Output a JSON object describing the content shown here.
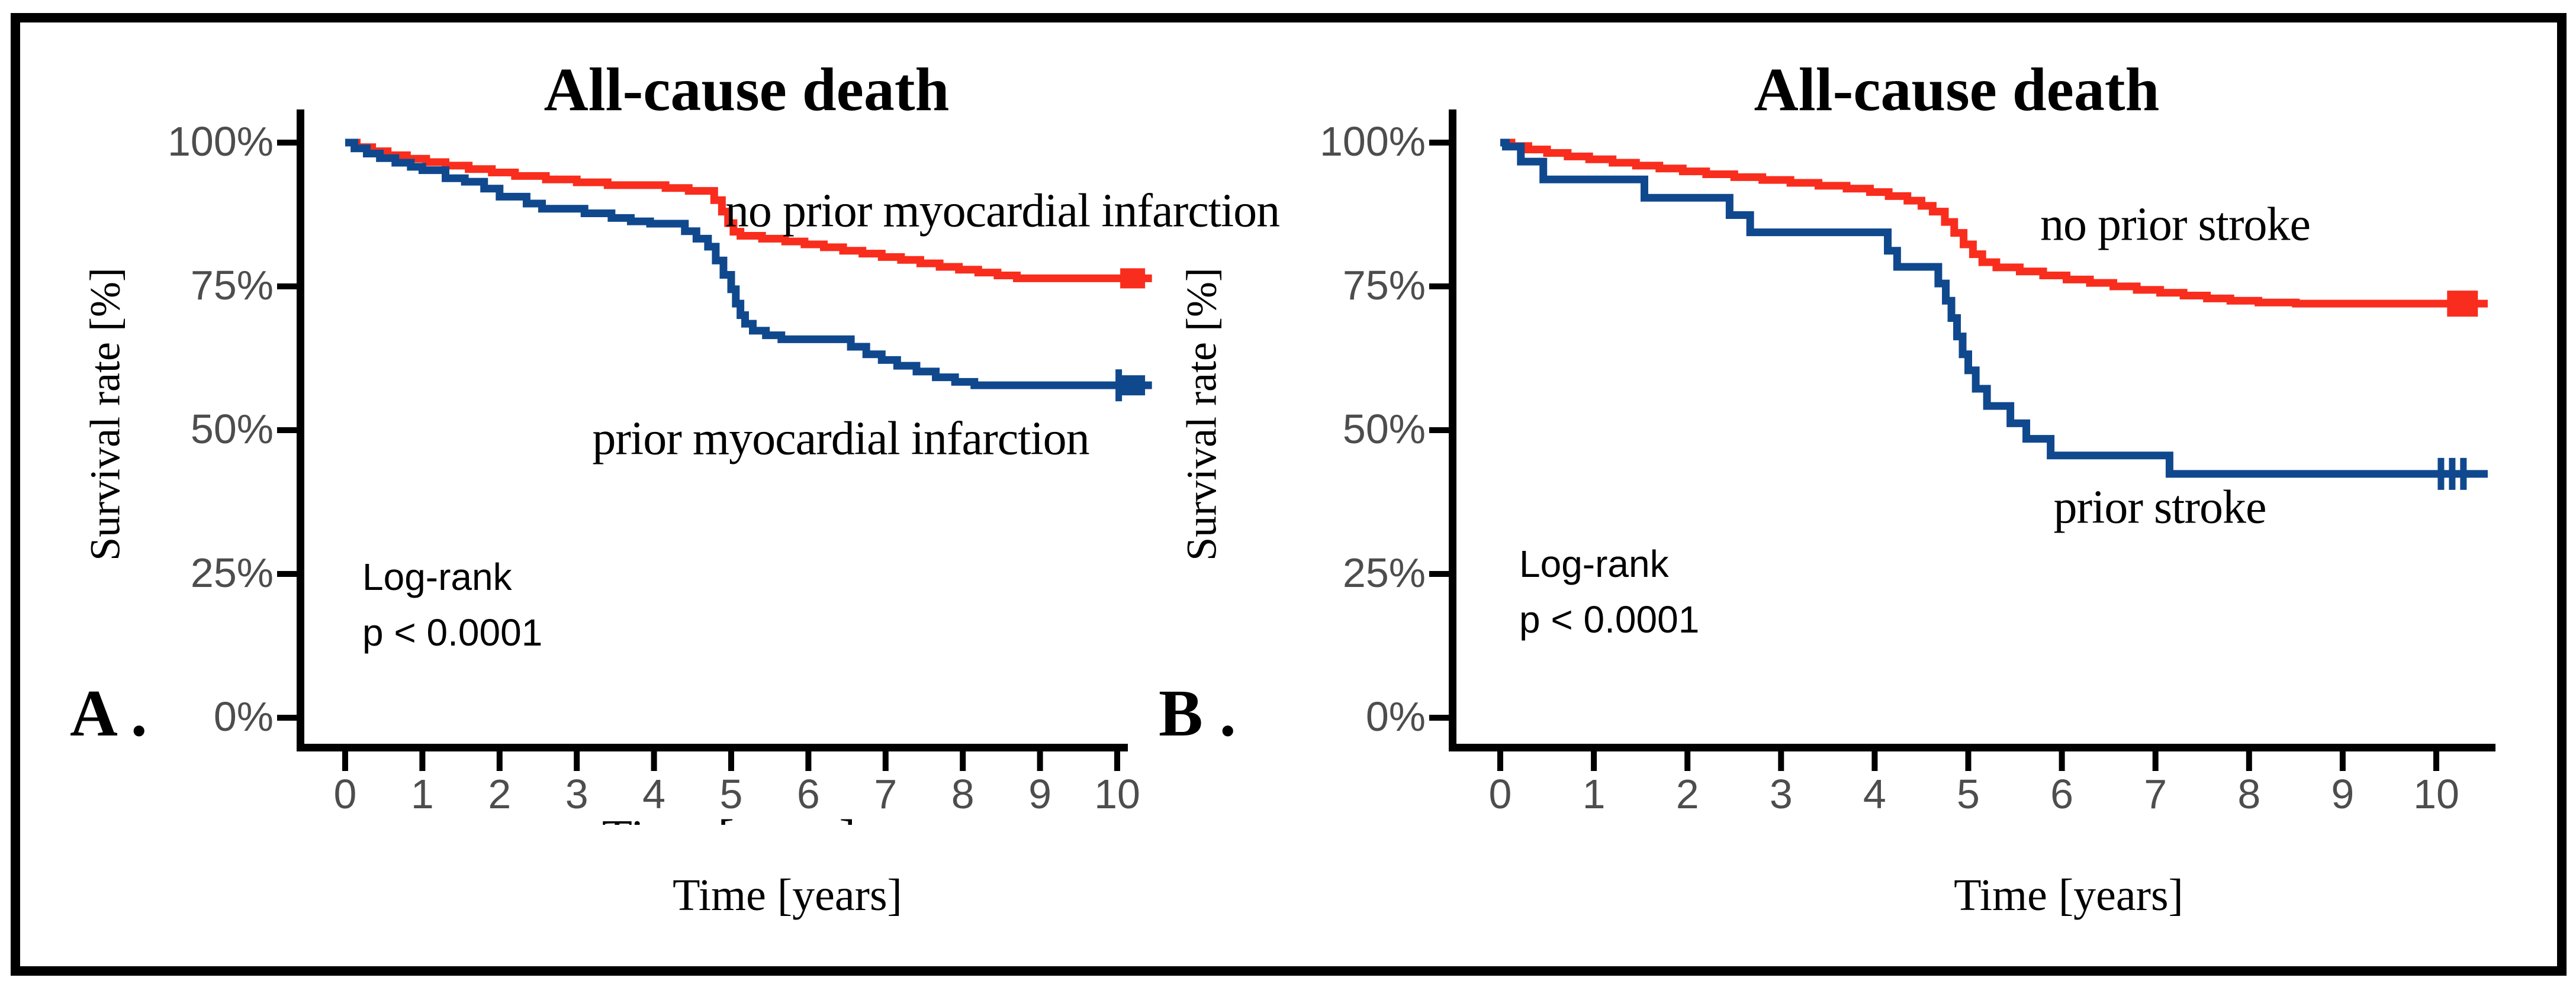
{
  "figure": {
    "panels": [
      {
        "letter": "A .",
        "stats": {
          "line1": "Log-rank",
          "line2": "p < 0.0001"
        }
      },
      {
        "letter": "B .",
        "stats": {
          "line1": "Log-rank",
          "line2": "p < 0.0001"
        }
      }
    ]
  },
  "chart_data": [
    {
      "type": "line",
      "subtype": "kaplan-meier-step",
      "title": "All-cause death",
      "xlabel": "Time [years]",
      "ylabel": "Survival rate [%]",
      "annotation": "Log-rank p < 0.0001",
      "xlim": [
        0,
        10.6
      ],
      "ylim": [
        0,
        100
      ],
      "x_ticks": [
        0,
        1,
        2,
        3,
        4,
        5,
        6,
        7,
        8,
        9,
        10
      ],
      "y_ticks": [
        {
          "label": "100%",
          "value": 100
        },
        {
          "label": "75%",
          "value": 75
        },
        {
          "label": "50%",
          "value": 50
        },
        {
          "label": "25%",
          "value": 25
        },
        {
          "label": "0%",
          "value": 0
        }
      ],
      "grid": false,
      "legend_position": "inline-labels",
      "series": [
        {
          "name": "no prior myocardial infarction",
          "color": "#f92d1d",
          "points": [
            [
              0,
              100
            ],
            [
              0.15,
              99.2
            ],
            [
              0.35,
              98.5
            ],
            [
              0.55,
              97.8
            ],
            [
              0.8,
              97.2
            ],
            [
              1.05,
              96.6
            ],
            [
              1.3,
              96.0
            ],
            [
              1.6,
              95.4
            ],
            [
              1.9,
              94.8
            ],
            [
              2.2,
              94.2
            ],
            [
              2.6,
              93.6
            ],
            [
              3.0,
              93.1
            ],
            [
              3.4,
              92.6
            ],
            [
              4.15,
              92.1
            ],
            [
              4.45,
              91.6
            ],
            [
              4.78,
              90.0
            ],
            [
              4.88,
              88.0
            ],
            [
              4.96,
              86.0
            ],
            [
              5.03,
              84.5
            ],
            [
              5.12,
              83.8
            ],
            [
              5.4,
              83.3
            ],
            [
              5.7,
              82.8
            ],
            [
              5.95,
              82.3
            ],
            [
              6.2,
              81.8
            ],
            [
              6.45,
              81.2
            ],
            [
              6.7,
              80.7
            ],
            [
              6.95,
              80.1
            ],
            [
              7.2,
              79.6
            ],
            [
              7.45,
              79.0
            ],
            [
              7.7,
              78.4
            ],
            [
              7.95,
              77.9
            ],
            [
              8.2,
              77.4
            ],
            [
              8.45,
              76.9
            ],
            [
              8.7,
              76.4
            ],
            [
              10.45,
              76.4
            ]
          ],
          "censor_times": [],
          "end_square_time": 10.2
        },
        {
          "name": "prior myocardial infarction",
          "color": "#10488e",
          "points": [
            [
              0,
              100
            ],
            [
              0.12,
              99.0
            ],
            [
              0.28,
              98.1
            ],
            [
              0.45,
              97.3
            ],
            [
              0.65,
              96.5
            ],
            [
              0.85,
              95.8
            ],
            [
              1.0,
              95.2
            ],
            [
              1.3,
              93.8
            ],
            [
              1.55,
              93.2
            ],
            [
              1.8,
              92.0
            ],
            [
              2.0,
              90.6
            ],
            [
              2.35,
              89.4
            ],
            [
              2.55,
              88.5
            ],
            [
              3.1,
              87.7
            ],
            [
              3.45,
              86.9
            ],
            [
              3.7,
              86.3
            ],
            [
              3.95,
              85.9
            ],
            [
              4.4,
              84.6
            ],
            [
              4.55,
              83.3
            ],
            [
              4.7,
              81.9
            ],
            [
              4.8,
              79.5
            ],
            [
              4.9,
              77.0
            ],
            [
              5.0,
              74.5
            ],
            [
              5.06,
              72.0
            ],
            [
              5.12,
              70.0
            ],
            [
              5.18,
              68.5
            ],
            [
              5.28,
              67.3
            ],
            [
              5.45,
              66.5
            ],
            [
              5.65,
              65.8
            ],
            [
              6.55,
              64.5
            ],
            [
              6.75,
              63.2
            ],
            [
              6.95,
              62.2
            ],
            [
              7.15,
              61.2
            ],
            [
              7.4,
              60.2
            ],
            [
              7.65,
              59.2
            ],
            [
              7.9,
              58.4
            ],
            [
              8.15,
              57.8
            ],
            [
              10.45,
              57.8
            ]
          ],
          "censor_times": [
            10.02
          ],
          "end_square_time": 10.2
        }
      ]
    },
    {
      "type": "line",
      "subtype": "kaplan-meier-step",
      "title": "All-cause death",
      "xlabel": "Time [years]",
      "ylabel": "Survival rate [%]",
      "annotation": "Log-rank p < 0.0001",
      "xlim": [
        0,
        10.6
      ],
      "ylim": [
        0,
        100
      ],
      "x_ticks": [
        0,
        1,
        2,
        3,
        4,
        5,
        6,
        7,
        8,
        9,
        10
      ],
      "y_ticks": [
        {
          "label": "100%",
          "value": 100
        },
        {
          "label": "75%",
          "value": 75
        },
        {
          "label": "50%",
          "value": 50
        },
        {
          "label": "25%",
          "value": 25
        },
        {
          "label": "0%",
          "value": 0
        }
      ],
      "grid": false,
      "legend_position": "inline-labels",
      "series": [
        {
          "name": "no prior stroke",
          "color": "#f92d1d",
          "points": [
            [
              0,
              100
            ],
            [
              0.12,
              99.4
            ],
            [
              0.3,
              98.8
            ],
            [
              0.5,
              98.2
            ],
            [
              0.72,
              97.6
            ],
            [
              0.95,
              97.1
            ],
            [
              1.2,
              96.5
            ],
            [
              1.45,
              96.0
            ],
            [
              1.7,
              95.5
            ],
            [
              1.95,
              95.0
            ],
            [
              2.2,
              94.5
            ],
            [
              2.5,
              94.0
            ],
            [
              2.8,
              93.5
            ],
            [
              3.1,
              93.0
            ],
            [
              3.4,
              92.5
            ],
            [
              3.7,
              92.0
            ],
            [
              3.95,
              91.4
            ],
            [
              4.15,
              90.7
            ],
            [
              4.35,
              89.9
            ],
            [
              4.5,
              89.0
            ],
            [
              4.62,
              88.0
            ],
            [
              4.75,
              86.2
            ],
            [
              4.85,
              84.3
            ],
            [
              4.95,
              82.3
            ],
            [
              5.05,
              80.6
            ],
            [
              5.15,
              79.2
            ],
            [
              5.3,
              78.3
            ],
            [
              5.55,
              77.6
            ],
            [
              5.8,
              76.9
            ],
            [
              6.05,
              76.2
            ],
            [
              6.3,
              75.6
            ],
            [
              6.55,
              75.0
            ],
            [
              6.8,
              74.4
            ],
            [
              7.05,
              73.9
            ],
            [
              7.3,
              73.4
            ],
            [
              7.55,
              72.9
            ],
            [
              7.8,
              72.5
            ],
            [
              8.1,
              72.2
            ],
            [
              8.5,
              72.0
            ],
            [
              10.55,
              72.0
            ]
          ],
          "censor_times": [],
          "end_square_time": 10.28
        },
        {
          "name": "prior stroke",
          "color": "#10488e",
          "points": [
            [
              0,
              100
            ],
            [
              0.06,
              99.3
            ],
            [
              0.22,
              96.7
            ],
            [
              0.46,
              93.6
            ],
            [
              1.54,
              90.4
            ],
            [
              2.45,
              87.4
            ],
            [
              2.67,
              84.4
            ],
            [
              4.14,
              81.2
            ],
            [
              4.24,
              78.4
            ],
            [
              4.68,
              75.5
            ],
            [
              4.76,
              72.5
            ],
            [
              4.82,
              69.5
            ],
            [
              4.88,
              66.3
            ],
            [
              4.94,
              63.2
            ],
            [
              5.0,
              60.4
            ],
            [
              5.08,
              57.2
            ],
            [
              5.2,
              54.2
            ],
            [
              5.45,
              51.2
            ],
            [
              5.62,
              48.5
            ],
            [
              5.88,
              45.6
            ],
            [
              7.15,
              42.4
            ],
            [
              10.55,
              42.4
            ]
          ],
          "censor_times": [
            10.05,
            10.17,
            10.29
          ],
          "end_square_time": null
        }
      ]
    }
  ]
}
